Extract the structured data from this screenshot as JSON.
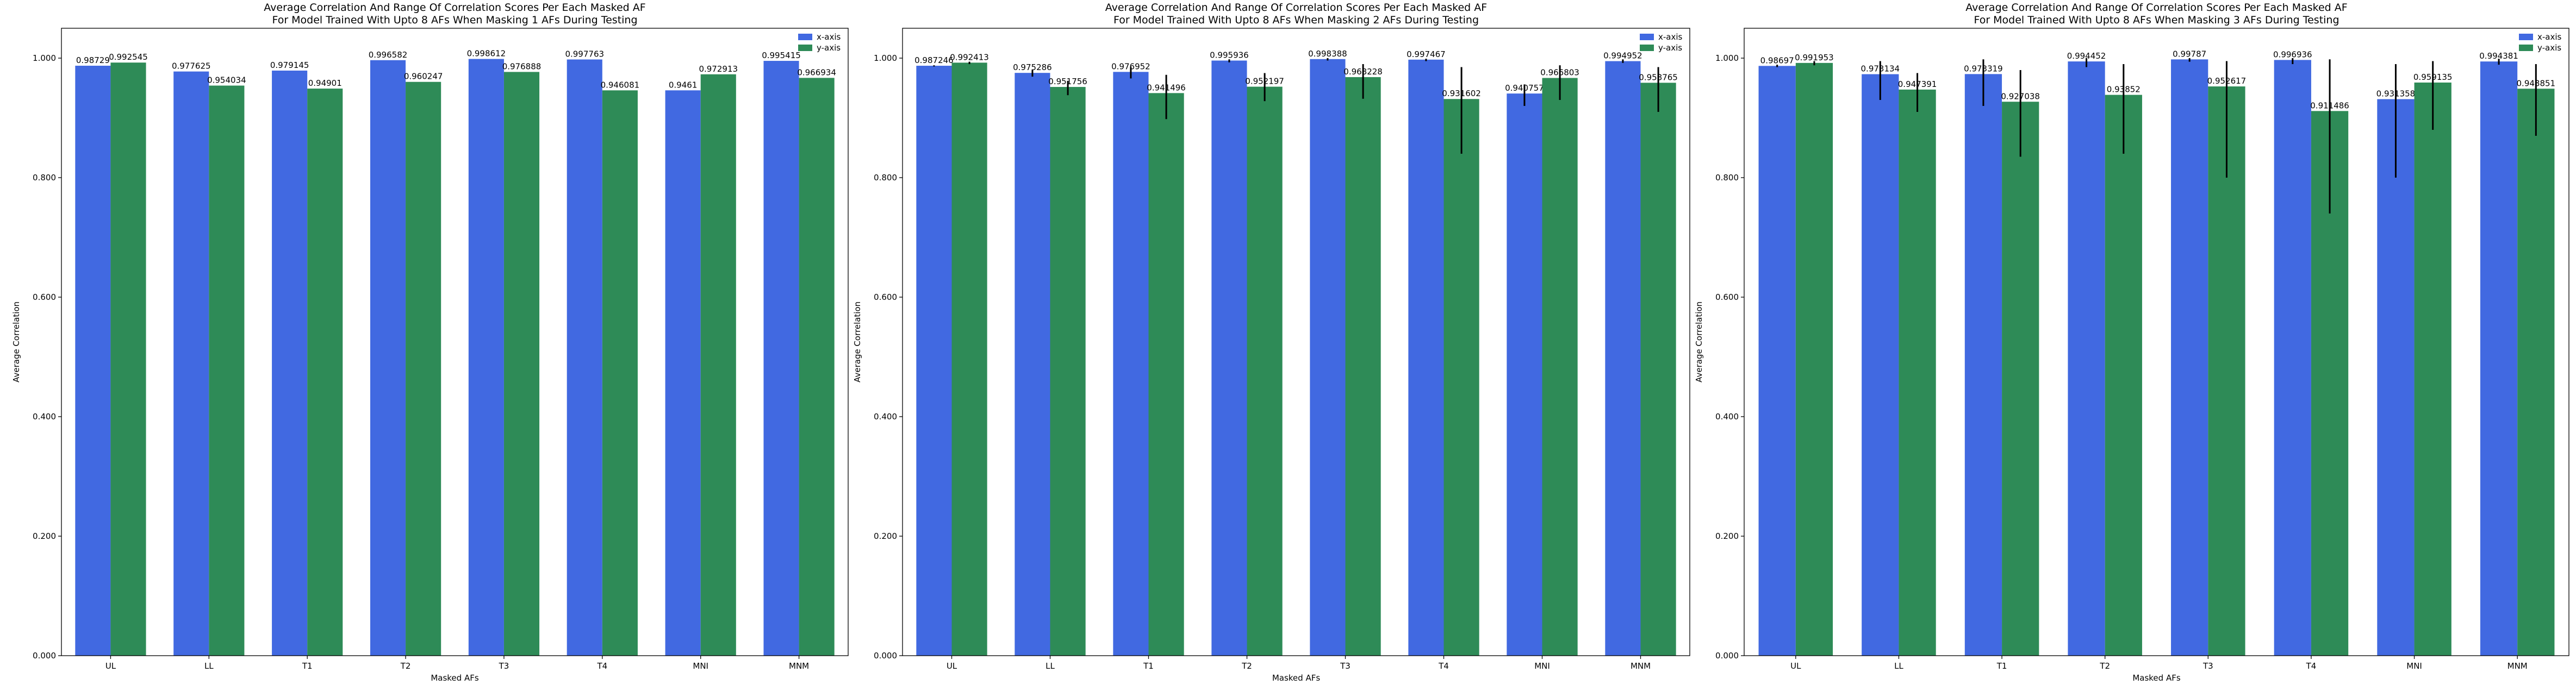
{
  "colors": {
    "x_axis": "#4169e1",
    "y_axis": "#2e8b57",
    "error_bar": "#000000"
  },
  "chart_data": [
    {
      "type": "bar",
      "title": "Average Correlation And Range Of Correlation Scores Per Each Masked AF",
      "subtitle": "For Model Trained With Upto 8 AFs When Masking 1 AFs During Testing",
      "xlabel": "Masked AFs",
      "ylabel": "Average Correlation",
      "ylim": [
        0,
        1.05
      ],
      "yticks": [
        "0.000",
        "0.200",
        "0.400",
        "0.600",
        "0.800",
        "1.000"
      ],
      "legend_position": "top-right",
      "categories": [
        "UL",
        "LL",
        "T1",
        "T2",
        "T3",
        "T4",
        "MNI",
        "MNM"
      ],
      "series": [
        {
          "name": "x-axis",
          "values": [
            0.98729,
            0.977625,
            0.979145,
            0.996582,
            0.998612,
            0.997763,
            0.9461,
            0.995415
          ],
          "labels": [
            "0.98729",
            "0.977625",
            "0.979145",
            "0.996582",
            "0.998612",
            "0.997763",
            "0.9461",
            "0.995415"
          ],
          "err_low": [
            0.98729,
            0.977625,
            0.979145,
            0.996582,
            0.998612,
            0.997763,
            0.9461,
            0.995415
          ],
          "err_high": [
            0.98729,
            0.977625,
            0.979145,
            0.996582,
            0.998612,
            0.997763,
            0.9461,
            0.995415
          ]
        },
        {
          "name": "y-axis",
          "values": [
            0.992545,
            0.954034,
            0.94901,
            0.960247,
            0.976888,
            0.946081,
            0.972913,
            0.966934
          ],
          "labels": [
            "0.992545",
            "0.954034",
            "0.94901",
            "0.960247",
            "0.976888",
            "0.946081",
            "0.972913",
            "0.966934"
          ],
          "err_low": [
            0.992545,
            0.954034,
            0.94901,
            0.960247,
            0.976888,
            0.946081,
            0.972913,
            0.966934
          ],
          "err_high": [
            0.992545,
            0.954034,
            0.94901,
            0.960247,
            0.976888,
            0.946081,
            0.972913,
            0.966934
          ]
        }
      ]
    },
    {
      "type": "bar",
      "title": "Average Correlation And Range Of Correlation Scores Per Each Masked AF",
      "subtitle": "For Model Trained With Upto 8 AFs When Masking 2 AFs During Testing",
      "xlabel": "Masked AFs",
      "ylabel": "Average Correlation",
      "ylim": [
        0,
        1.05
      ],
      "yticks": [
        "0.000",
        "0.200",
        "0.400",
        "0.600",
        "0.800",
        "1.000"
      ],
      "legend_position": "top-right",
      "categories": [
        "UL",
        "LL",
        "T1",
        "T2",
        "T3",
        "T4",
        "MNI",
        "MNM"
      ],
      "series": [
        {
          "name": "x-axis",
          "values": [
            0.987246,
            0.975286,
            0.976952,
            0.995936,
            0.998388,
            0.997467,
            0.940757,
            0.994952
          ],
          "labels": [
            "0.987246",
            "0.975286",
            "0.976952",
            "0.995936",
            "0.998388",
            "0.997467",
            "0.940757",
            "0.994952"
          ],
          "err_low": [
            0.986,
            0.969,
            0.966,
            0.993,
            0.996,
            0.995,
            0.92,
            0.992
          ],
          "err_high": [
            0.988,
            0.98,
            0.985,
            0.998,
            1.0,
            0.999,
            0.956,
            0.998
          ]
        },
        {
          "name": "y-axis",
          "values": [
            0.992413,
            0.951756,
            0.941496,
            0.952197,
            0.968228,
            0.931602,
            0.966803,
            0.958765
          ],
          "labels": [
            "0.992413",
            "0.951756",
            "0.941496",
            "0.952197",
            "0.968228",
            "0.931602",
            "0.966803",
            "0.958765"
          ],
          "err_low": [
            0.99,
            0.938,
            0.898,
            0.928,
            0.932,
            0.84,
            0.93,
            0.91
          ],
          "err_high": [
            0.994,
            0.962,
            0.972,
            0.975,
            0.99,
            0.985,
            0.988,
            0.985
          ]
        }
      ]
    },
    {
      "type": "bar",
      "title": "Average Correlation And Range Of Correlation Scores Per Each Masked AF",
      "subtitle": "For Model Trained With Upto 8 AFs When Masking 3 AFs During Testing",
      "xlabel": "Masked AFs",
      "ylabel": "Average Correlation",
      "ylim": [
        0,
        1.05
      ],
      "yticks": [
        "0.000",
        "0.200",
        "0.400",
        "0.600",
        "0.800",
        "1.000"
      ],
      "legend_position": "top-right",
      "categories": [
        "UL",
        "LL",
        "T1",
        "T2",
        "T3",
        "T4",
        "MNI",
        "MNM"
      ],
      "series": [
        {
          "name": "x-axis",
          "values": [
            0.98697,
            0.973134,
            0.973319,
            0.994452,
            0.99787,
            0.996936,
            0.931358,
            0.994381
          ],
          "labels": [
            "0.98697",
            "0.973134",
            "0.973319",
            "0.994452",
            "0.99787",
            "0.996936",
            "0.931358",
            "0.994381"
          ],
          "err_low": [
            0.985,
            0.93,
            0.92,
            0.985,
            0.994,
            0.99,
            0.8,
            0.989
          ],
          "err_high": [
            0.989,
            0.995,
            0.998,
            1.0,
            1.0,
            1.0,
            0.99,
            0.999
          ]
        },
        {
          "name": "y-axis",
          "values": [
            0.991953,
            0.947391,
            0.927038,
            0.93852,
            0.952617,
            0.911486,
            0.959135,
            0.948851
          ],
          "labels": [
            "0.991953",
            "0.947391",
            "0.927038",
            "0.93852",
            "0.952617",
            "0.911486",
            "0.959135",
            "0.948851"
          ],
          "err_low": [
            0.988,
            0.91,
            0.835,
            0.84,
            0.8,
            0.74,
            0.88,
            0.87
          ],
          "err_high": [
            0.995,
            0.975,
            0.98,
            0.99,
            0.995,
            0.998,
            0.995,
            0.99
          ]
        }
      ]
    }
  ]
}
